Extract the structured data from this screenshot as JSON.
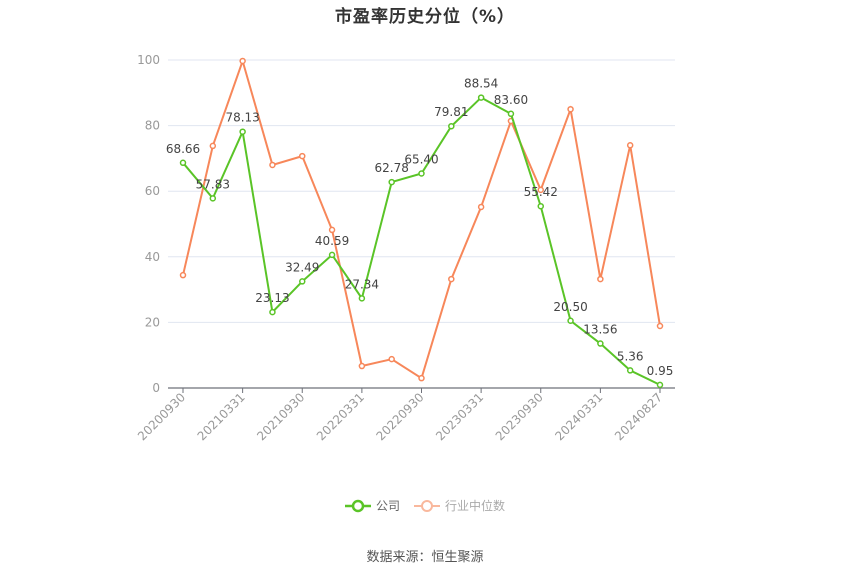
{
  "title": "市盈率历史分位（%）",
  "source": "数据来源：恒生聚源",
  "legend": [
    {
      "label": "公司",
      "color": "#5ac427"
    },
    {
      "label": "行业中位数",
      "color": "#f7875a"
    }
  ],
  "chart_data": {
    "type": "line",
    "title": "市盈率历史分位（%）",
    "xlabel": "",
    "ylabel": "",
    "ylim": [
      0,
      100
    ],
    "yticks": [
      0,
      20,
      40,
      60,
      80,
      100
    ],
    "grid": true,
    "legend_position": "bottom",
    "x_tick_labels": [
      "20200930",
      "20210331",
      "20210930",
      "20220331",
      "20220930",
      "20230331",
      "20230930",
      "20240331",
      "20240827"
    ],
    "x_tick_indices": [
      0,
      2,
      4,
      6,
      8,
      10,
      12,
      14,
      16
    ],
    "num_points": 17,
    "series": [
      {
        "name": "公司",
        "color": "#5ac427",
        "show_labels": true,
        "values": [
          68.66,
          57.83,
          78.13,
          23.13,
          32.49,
          40.59,
          27.34,
          62.78,
          65.4,
          79.81,
          88.54,
          83.6,
          55.42,
          20.5,
          13.56,
          5.36,
          0.95
        ],
        "labels": [
          "68.66",
          "57.83",
          "78.13",
          "23.13",
          "32.49",
          "40.59",
          "27.34",
          "62.78",
          "65.40",
          "79.81",
          "88.54",
          "83.60",
          "55.42",
          "20.50",
          "13.56",
          "5.36",
          "0.95"
        ]
      },
      {
        "name": "行业中位数",
        "color": "#f7875a",
        "show_labels": false,
        "values": [
          34.4,
          73.8,
          99.7,
          68.0,
          70.7,
          48.2,
          6.7,
          8.8,
          3.0,
          33.2,
          55.2,
          81.4,
          60.4,
          85.0,
          33.2,
          74.0,
          18.9
        ]
      }
    ]
  }
}
